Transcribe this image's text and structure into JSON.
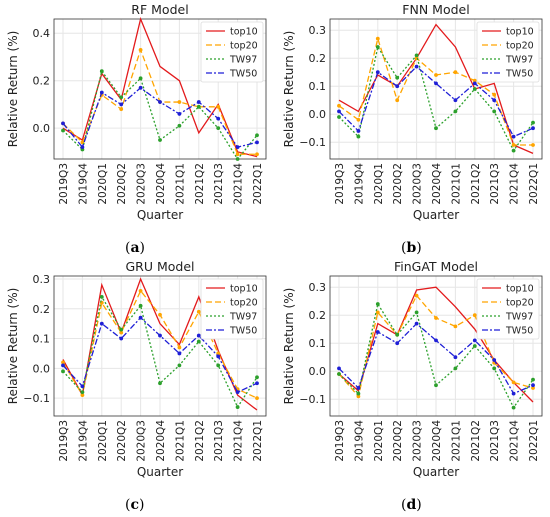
{
  "x_categories": [
    "2019Q3",
    "2019Q4",
    "2020Q1",
    "2020Q2",
    "2020Q3",
    "2020Q4",
    "2021Q1",
    "2021Q2",
    "2021Q3",
    "2021Q4",
    "2022Q1"
  ],
  "series_styles": {
    "top10": {
      "color": "#e31a1c",
      "dash": "",
      "marker": false
    },
    "top20": {
      "color": "#ffa500",
      "dash": "6,3",
      "marker": true
    },
    "TW97": {
      "color": "#2ca02c",
      "dash": "2,2",
      "marker": true
    },
    "TW50": {
      "color": "#1f1fd6",
      "dash": "6,2,2,2",
      "marker": true
    }
  },
  "panels": [
    {
      "caption_open": "(",
      "caption_letter": "a",
      "caption_close": ")",
      "chart_data": {
        "type": "line",
        "title": "RF Model",
        "xlabel": "Quarter",
        "ylabel": "Relative Return (%)",
        "ylim": [
          -0.13,
          0.46
        ],
        "yticks": [
          0.0,
          0.2,
          0.4
        ],
        "ytick_labels": [
          "0.0",
          "0.2",
          "0.4"
        ],
        "legend_position": "top-right",
        "grid": true,
        "categories": [
          "2019Q3",
          "2019Q4",
          "2020Q1",
          "2020Q2",
          "2020Q3",
          "2020Q4",
          "2021Q1",
          "2021Q2",
          "2021Q3",
          "2021Q4",
          "2022Q1"
        ],
        "series": [
          {
            "name": "top10",
            "values": [
              0.0,
              -0.05,
              0.23,
              0.12,
              0.46,
              0.26,
              0.2,
              -0.02,
              0.1,
              -0.1,
              -0.12
            ]
          },
          {
            "name": "top20",
            "values": [
              0.02,
              -0.06,
              0.14,
              0.08,
              0.33,
              0.11,
              0.11,
              0.09,
              0.09,
              -0.11,
              -0.11
            ]
          },
          {
            "name": "TW97",
            "values": [
              -0.01,
              -0.09,
              0.24,
              0.13,
              0.21,
              -0.05,
              0.01,
              0.09,
              0.0,
              -0.13,
              -0.03
            ]
          },
          {
            "name": "TW50",
            "values": [
              0.02,
              -0.08,
              0.15,
              0.1,
              0.17,
              0.11,
              0.06,
              0.11,
              0.04,
              -0.08,
              -0.06
            ]
          }
        ]
      }
    },
    {
      "caption_open": "(",
      "caption_letter": "b",
      "caption_close": ")",
      "chart_data": {
        "type": "line",
        "title": "FNN Model",
        "xlabel": "Quarter",
        "ylabel": "Relative Return (%)",
        "ylim": [
          -0.16,
          0.34
        ],
        "yticks": [
          -0.1,
          0.0,
          0.1,
          0.2,
          0.3
        ],
        "ytick_labels": [
          "−0.1",
          "0.0",
          "0.1",
          "0.2",
          "0.3"
        ],
        "legend_position": "top-right",
        "grid": true,
        "categories": [
          "2019Q3",
          "2019Q4",
          "2020Q1",
          "2020Q2",
          "2020Q3",
          "2020Q4",
          "2021Q1",
          "2021Q2",
          "2021Q3",
          "2021Q4",
          "2022Q1"
        ],
        "series": [
          {
            "name": "top10",
            "values": [
              0.05,
              0.01,
              0.14,
              0.1,
              0.2,
              0.32,
              0.24,
              0.09,
              0.11,
              -0.11,
              -0.14
            ]
          },
          {
            "name": "top20",
            "values": [
              0.03,
              -0.02,
              0.27,
              0.05,
              0.2,
              0.14,
              0.15,
              0.12,
              0.07,
              -0.11,
              -0.11
            ]
          },
          {
            "name": "TW97",
            "values": [
              -0.01,
              -0.08,
              0.24,
              0.13,
              0.21,
              -0.05,
              0.01,
              0.09,
              0.01,
              -0.13,
              -0.03
            ]
          },
          {
            "name": "TW50",
            "values": [
              0.01,
              -0.06,
              0.15,
              0.1,
              0.17,
              0.11,
              0.05,
              0.11,
              0.05,
              -0.08,
              -0.05
            ]
          }
        ]
      }
    },
    {
      "caption_open": "(",
      "caption_letter": "c",
      "caption_close": ")",
      "chart_data": {
        "type": "line",
        "title": "GRU Model",
        "xlabel": "Quarter",
        "ylabel": "Relative Return (%)",
        "ylim": [
          -0.16,
          0.31
        ],
        "yticks": [
          -0.1,
          0.0,
          0.1,
          0.2,
          0.3
        ],
        "ytick_labels": [
          "−0.1",
          "0.0",
          "0.1",
          "0.2",
          "0.3"
        ],
        "legend_position": "top-right",
        "grid": true,
        "categories": [
          "2019Q3",
          "2019Q4",
          "2020Q1",
          "2020Q2",
          "2020Q3",
          "2020Q4",
          "2021Q1",
          "2021Q2",
          "2021Q3",
          "2021Q4",
          "2022Q1"
        ],
        "series": [
          {
            "name": "top10",
            "values": [
              0.03,
              -0.09,
              0.28,
              0.12,
              0.3,
              0.15,
              0.08,
              0.24,
              0.06,
              -0.09,
              -0.14
            ]
          },
          {
            "name": "top20",
            "values": [
              0.02,
              -0.09,
              0.22,
              0.12,
              0.26,
              0.18,
              0.07,
              0.19,
              0.05,
              -0.07,
              -0.1
            ]
          },
          {
            "name": "TW97",
            "values": [
              -0.01,
              -0.08,
              0.24,
              0.13,
              0.21,
              -0.05,
              0.01,
              0.09,
              0.01,
              -0.13,
              -0.03
            ]
          },
          {
            "name": "TW50",
            "values": [
              0.01,
              -0.06,
              0.15,
              0.1,
              0.17,
              0.11,
              0.05,
              0.11,
              0.04,
              -0.08,
              -0.05
            ]
          }
        ]
      }
    },
    {
      "caption_open": "(",
      "caption_letter": "d",
      "caption_close": ")",
      "chart_data": {
        "type": "line",
        "title": "FinGAT Model",
        "xlabel": "Quarter",
        "ylabel": "Relative Return (%)",
        "ylim": [
          -0.16,
          0.34
        ],
        "yticks": [
          -0.1,
          0.0,
          0.1,
          0.2,
          0.3
        ],
        "ytick_labels": [
          "−0.1",
          "0.0",
          "0.1",
          "0.2",
          "0.3"
        ],
        "legend_position": "top-right",
        "grid": true,
        "categories": [
          "2019Q3",
          "2019Q4",
          "2020Q1",
          "2020Q2",
          "2020Q3",
          "2020Q4",
          "2021Q1",
          "2021Q2",
          "2021Q3",
          "2021Q4",
          "2022Q1"
        ],
        "series": [
          {
            "name": "top10",
            "values": [
              -0.01,
              -0.07,
              0.17,
              0.13,
              0.29,
              0.3,
              0.23,
              0.15,
              0.04,
              -0.04,
              -0.11
            ]
          },
          {
            "name": "top20",
            "values": [
              -0.01,
              -0.09,
              0.21,
              0.13,
              0.27,
              0.19,
              0.16,
              0.2,
              0.03,
              -0.04,
              -0.06
            ]
          },
          {
            "name": "TW97",
            "values": [
              -0.01,
              -0.08,
              0.24,
              0.13,
              0.21,
              -0.05,
              0.01,
              0.09,
              0.01,
              -0.13,
              -0.03
            ]
          },
          {
            "name": "TW50",
            "values": [
              0.01,
              -0.06,
              0.14,
              0.1,
              0.17,
              0.11,
              0.05,
              0.11,
              0.04,
              -0.08,
              -0.05
            ]
          }
        ]
      }
    }
  ]
}
